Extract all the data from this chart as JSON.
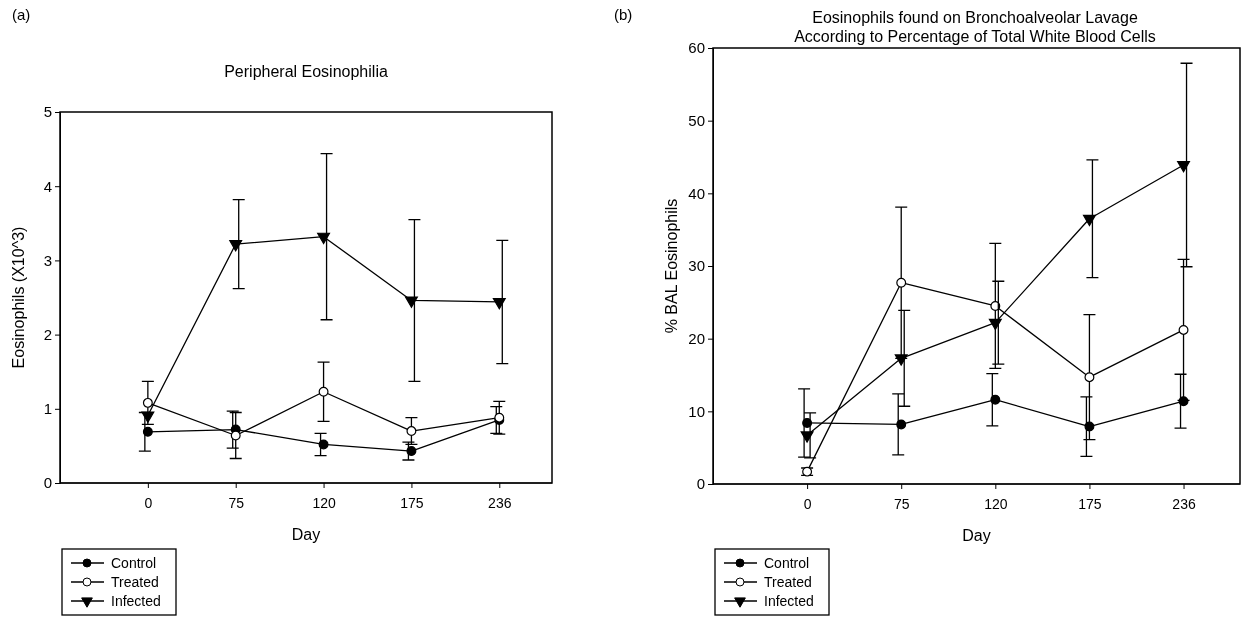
{
  "chart_data": [
    {
      "type": "line",
      "title": "Peripheral Eosinophilia",
      "xlabel": "Day",
      "ylabel": "Eosinophils (X10^3)",
      "annotations": [
        "(a)"
      ],
      "categories": [
        "0",
        "75",
        "120",
        "175",
        "236"
      ],
      "ylim": [
        0,
        5
      ],
      "yticks": [
        0,
        1,
        2,
        3,
        4,
        5
      ],
      "grid": false,
      "legend": "bottom left",
      "line_style": "solid",
      "series": [
        {
          "name": "Control",
          "color": "#000000",
          "marker": "circle",
          "values": [
            0.69,
            0.72,
            0.52,
            0.43,
            0.85
          ],
          "errors": [
            0.26,
            0.25,
            0.15,
            0.12,
            0.18
          ]
        },
        {
          "name": "Treated",
          "color": "#000000",
          "marker": "circle",
          "values": [
            1.08,
            0.64,
            1.23,
            0.7,
            0.88
          ],
          "errors": [
            0.29,
            0.31,
            0.4,
            0.18,
            0.22
          ]
        },
        {
          "name": "Infected",
          "color": "#000000",
          "marker": "triangle",
          "values": [
            0.91,
            3.22,
            3.32,
            2.46,
            2.44
          ],
          "errors": [
            null,
            0.6,
            1.12,
            1.09,
            0.83
          ]
        }
      ]
    },
    {
      "type": "line",
      "title": "Eosinophils found on Bronchoalveolar Lavage\nAccording to Percentage of Total White Blood Cells",
      "xlabel": "Day",
      "ylabel": "% BAL Eosinophils",
      "annotations": [
        "(b)"
      ],
      "categories": [
        "0",
        "75",
        "120",
        "175",
        "236"
      ],
      "ylim": [
        0,
        60
      ],
      "yticks": [
        0,
        10,
        20,
        30,
        40,
        50,
        60
      ],
      "grid": false,
      "legend": "bottom left",
      "line_style": "solid",
      "series": [
        {
          "name": "Control",
          "color": "#000000",
          "marker": "circle",
          "values": [
            8.4,
            8.2,
            11.6,
            7.9,
            11.4
          ],
          "errors": [
            4.7,
            4.2,
            3.6,
            4.1,
            3.7
          ]
        },
        {
          "name": "Treated",
          "color": "#000000",
          "marker": "circle",
          "values": [
            1.7,
            27.7,
            24.5,
            14.7,
            21.2
          ],
          "errors": [
            0.5,
            10.4,
            8.6,
            8.6,
            9.7
          ]
        },
        {
          "name": "Infected",
          "color": "#000000",
          "marker": "triangle",
          "values": [
            6.7,
            17.3,
            22.2,
            36.5,
            43.9
          ],
          "errors": [
            3.1,
            6.6,
            5.7,
            8.1,
            14
          ]
        }
      ]
    }
  ]
}
